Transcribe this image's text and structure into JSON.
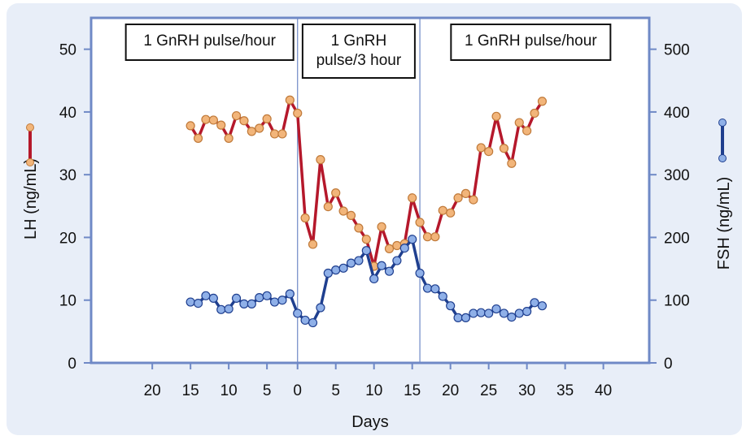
{
  "chart_data": {
    "type": "line",
    "xlabel": "Days",
    "ylabel_left": "LH (ng/mL)",
    "ylabel_right": "FSH (ng/mL)",
    "x_tick_labels": [
      "20",
      "15",
      "10",
      "5",
      "0",
      "5",
      "10",
      "15",
      "20",
      "25",
      "30",
      "35",
      "40"
    ],
    "y_left_ticks": [
      "0",
      "10",
      "20",
      "30",
      "40",
      "50"
    ],
    "y_right_ticks": [
      "0",
      "100",
      "200",
      "300",
      "400",
      "500"
    ],
    "y_left_range": [
      0,
      55
    ],
    "y_right_range": [
      0,
      550
    ],
    "x_range": [
      -27,
      46
    ],
    "phase_boundaries": [
      0,
      16
    ],
    "annotations": [
      "1 GnRH pulse/hour",
      "1 GnRH pulse/3 hour",
      "1 GnRH pulse/hour"
    ],
    "annotation_lines": [
      [
        "1 GnRH pulse/hour"
      ],
      [
        "1 GnRH",
        "pulse/3 hour"
      ],
      [
        "1 GnRH pulse/hour"
      ]
    ],
    "colors": {
      "lh_line": "#b5182b",
      "lh_marker": "#f2b57a",
      "fsh_line": "#1f3f8f",
      "fsh_marker": "#8fb0e8",
      "axis": "#6f89c6",
      "background": "#e8eef8"
    },
    "series": [
      {
        "axis": "left",
        "x": [
          -14,
          -13,
          -12,
          -11,
          -10,
          -9,
          -8,
          -7,
          -6,
          -5,
          -4,
          -3,
          -2,
          -1,
          0,
          1,
          2,
          3,
          4,
          5,
          6,
          7,
          8,
          9,
          10,
          11,
          12,
          13,
          14,
          15,
          16,
          17,
          18,
          19,
          20,
          21,
          22,
          23,
          24,
          25,
          26,
          27,
          28,
          29,
          30,
          31,
          32
        ],
        "y": [
          37.8,
          35.8,
          38.8,
          38.7,
          37.9,
          35.8,
          39.4,
          38.6,
          36.9,
          37.4,
          38.9,
          36.5,
          36.5,
          41.9,
          39.8,
          23.1,
          18.9,
          32.4,
          24.9,
          27.1,
          24.2,
          23.5,
          21.5,
          19.7,
          15.4,
          21.7,
          18.2,
          18.7,
          19.0,
          26.3,
          22.4,
          20.1,
          20.1,
          24.3,
          23.9,
          26.3,
          27.0,
          26.0,
          34.3,
          33.7,
          39.3,
          34.2,
          31.8,
          38.3,
          37.0,
          39.8,
          41.7
        ]
      },
      {
        "axis": "right",
        "x": [
          -14,
          -13,
          -12,
          -11,
          -10,
          -9,
          -8,
          -7,
          -6,
          -5,
          -4,
          -3,
          -2,
          -1,
          0,
          1,
          2,
          3,
          4,
          5,
          6,
          7,
          8,
          9,
          10,
          11,
          12,
          13,
          14,
          15,
          16,
          17,
          18,
          19,
          20,
          21,
          22,
          23,
          24,
          25,
          26,
          27,
          28,
          29,
          30,
          31,
          32
        ],
        "y": [
          97,
          95,
          107,
          103,
          85,
          86,
          103,
          94,
          94,
          104,
          107,
          97,
          100,
          110,
          79,
          68,
          64,
          88,
          143,
          148,
          151,
          159,
          163,
          179,
          134,
          155,
          146,
          163,
          183,
          197,
          143,
          119,
          118,
          106,
          91,
          72,
          72,
          79,
          80,
          79,
          86,
          79,
          73,
          79,
          82,
          96,
          91
        ]
      }
    ]
  }
}
